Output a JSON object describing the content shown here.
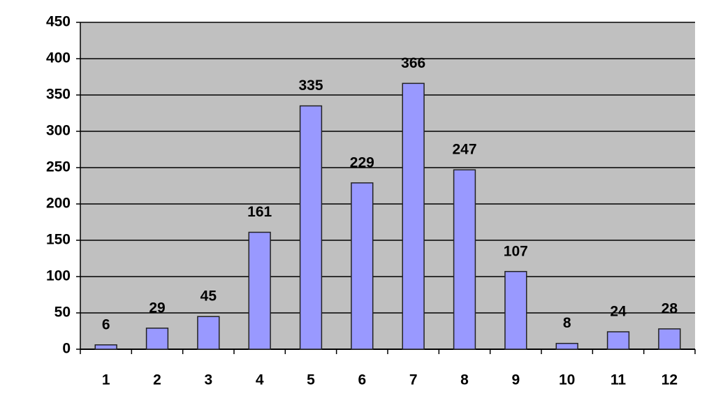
{
  "chart_data": {
    "type": "bar",
    "categories": [
      "1",
      "2",
      "3",
      "4",
      "5",
      "6",
      "7",
      "8",
      "9",
      "10",
      "11",
      "12"
    ],
    "values": [
      6,
      29,
      45,
      161,
      335,
      229,
      366,
      247,
      107,
      8,
      24,
      28
    ],
    "color": "#9999ff",
    "ylim": [
      0,
      450
    ],
    "yticks": [
      0,
      50,
      100,
      150,
      200,
      250,
      300,
      350,
      400,
      450
    ],
    "grid": true
  }
}
